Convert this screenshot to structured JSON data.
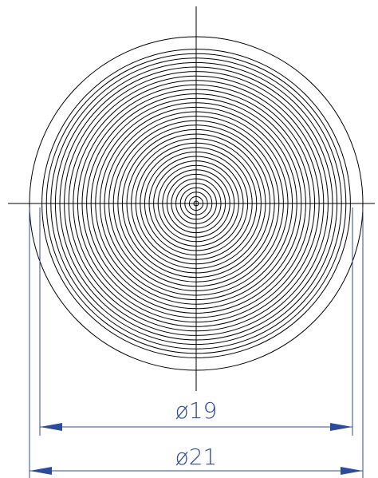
{
  "dimensions": {
    "inner": {
      "label": "ø19"
    },
    "outer": {
      "label": "ø21"
    }
  }
}
